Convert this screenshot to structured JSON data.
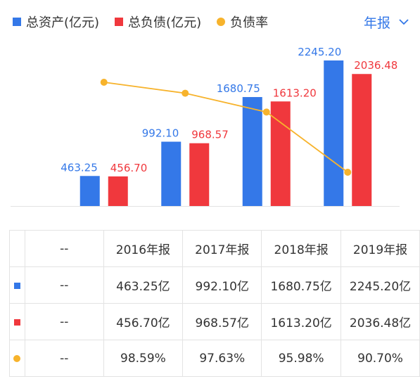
{
  "legend": {
    "items": [
      {
        "label": "总资产(亿元)",
        "color": "#3478e8",
        "shape": "square"
      },
      {
        "label": "总负债(亿元)",
        "color": "#f0383d",
        "shape": "square"
      },
      {
        "label": "负债率",
        "color": "#f7b32c",
        "shape": "dot"
      }
    ]
  },
  "period_select": {
    "label": "年报",
    "icon": "chevron-down-icon"
  },
  "chart_data": {
    "type": "bar",
    "categories": [
      "2016年报",
      "2017年报",
      "2018年报",
      "2019年报"
    ],
    "series": [
      {
        "name": "总资产(亿元)",
        "type": "bar",
        "color": "#3478e8",
        "values": [
          463.25,
          992.1,
          1680.75,
          2245.2
        ],
        "labels": [
          "463.25",
          "992.10",
          "1680.75",
          "2245.20"
        ]
      },
      {
        "name": "总负债(亿元)",
        "type": "bar",
        "color": "#f0383d",
        "values": [
          456.7,
          968.57,
          1613.2,
          2036.48
        ],
        "labels": [
          "456.70",
          "968.57",
          "1613.20",
          "2036.48"
        ]
      },
      {
        "name": "负债率",
        "type": "line",
        "color": "#f7b32c",
        "values": [
          98.59,
          97.63,
          95.98,
          90.7
        ]
      }
    ],
    "grid": false,
    "legend_position": "top-left"
  },
  "table": {
    "header": [
      "--",
      "2016年报",
      "2017年报",
      "2018年报",
      "2019年报"
    ],
    "rows": [
      {
        "marker": "square",
        "color": "#3478e8",
        "label": "--",
        "cells": [
          "463.25亿",
          "992.10亿",
          "1680.75亿",
          "2245.20亿"
        ]
      },
      {
        "marker": "square",
        "color": "#f0383d",
        "label": "--",
        "cells": [
          "456.70亿",
          "968.57亿",
          "1613.20亿",
          "2036.48亿"
        ]
      },
      {
        "marker": "dot",
        "color": "#f7b32c",
        "label": "--",
        "cells": [
          "98.59%",
          "97.63%",
          "95.98%",
          "90.70%"
        ]
      }
    ]
  }
}
